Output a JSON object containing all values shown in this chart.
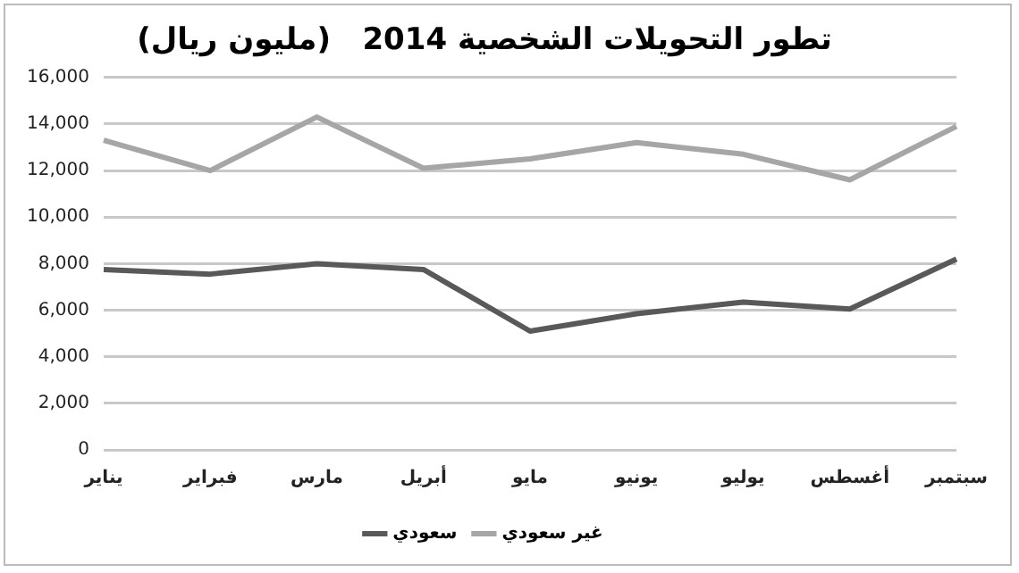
{
  "chart_data": {
    "type": "line",
    "title": "تطور التحويلات الشخصية 2014   (مليون ريال)",
    "categories": [
      "يناير",
      "فبراير",
      "مارس",
      "أبريل",
      "مايو",
      "يونيو",
      "يوليو",
      "أغسطس",
      "سبتمبر"
    ],
    "series": [
      {
        "name": "سعودي",
        "color": "#595959",
        "values": [
          7750,
          7550,
          8000,
          7750,
          5100,
          5850,
          6350,
          6050,
          8200
        ]
      },
      {
        "name": "غير سعودي",
        "color": "#a6a6a6",
        "values": [
          13300,
          12000,
          14300,
          12100,
          12500,
          13200,
          12700,
          11600,
          13900
        ]
      }
    ],
    "ylim": [
      0,
      16000
    ],
    "yticks": [
      {
        "value": 0,
        "label": "0"
      },
      {
        "value": 2000,
        "label": "2,000"
      },
      {
        "value": 4000,
        "label": "4,000"
      },
      {
        "value": 6000,
        "label": "6,000"
      },
      {
        "value": 8000,
        "label": "8,000"
      },
      {
        "value": 10000,
        "label": "10,000"
      },
      {
        "value": 12000,
        "label": "12,000"
      },
      {
        "value": 14000,
        "label": "14,000"
      },
      {
        "value": 16000,
        "label": "16,000"
      }
    ],
    "grid": "y",
    "legend": "bottom",
    "marker": "none",
    "line_style": "solid"
  }
}
